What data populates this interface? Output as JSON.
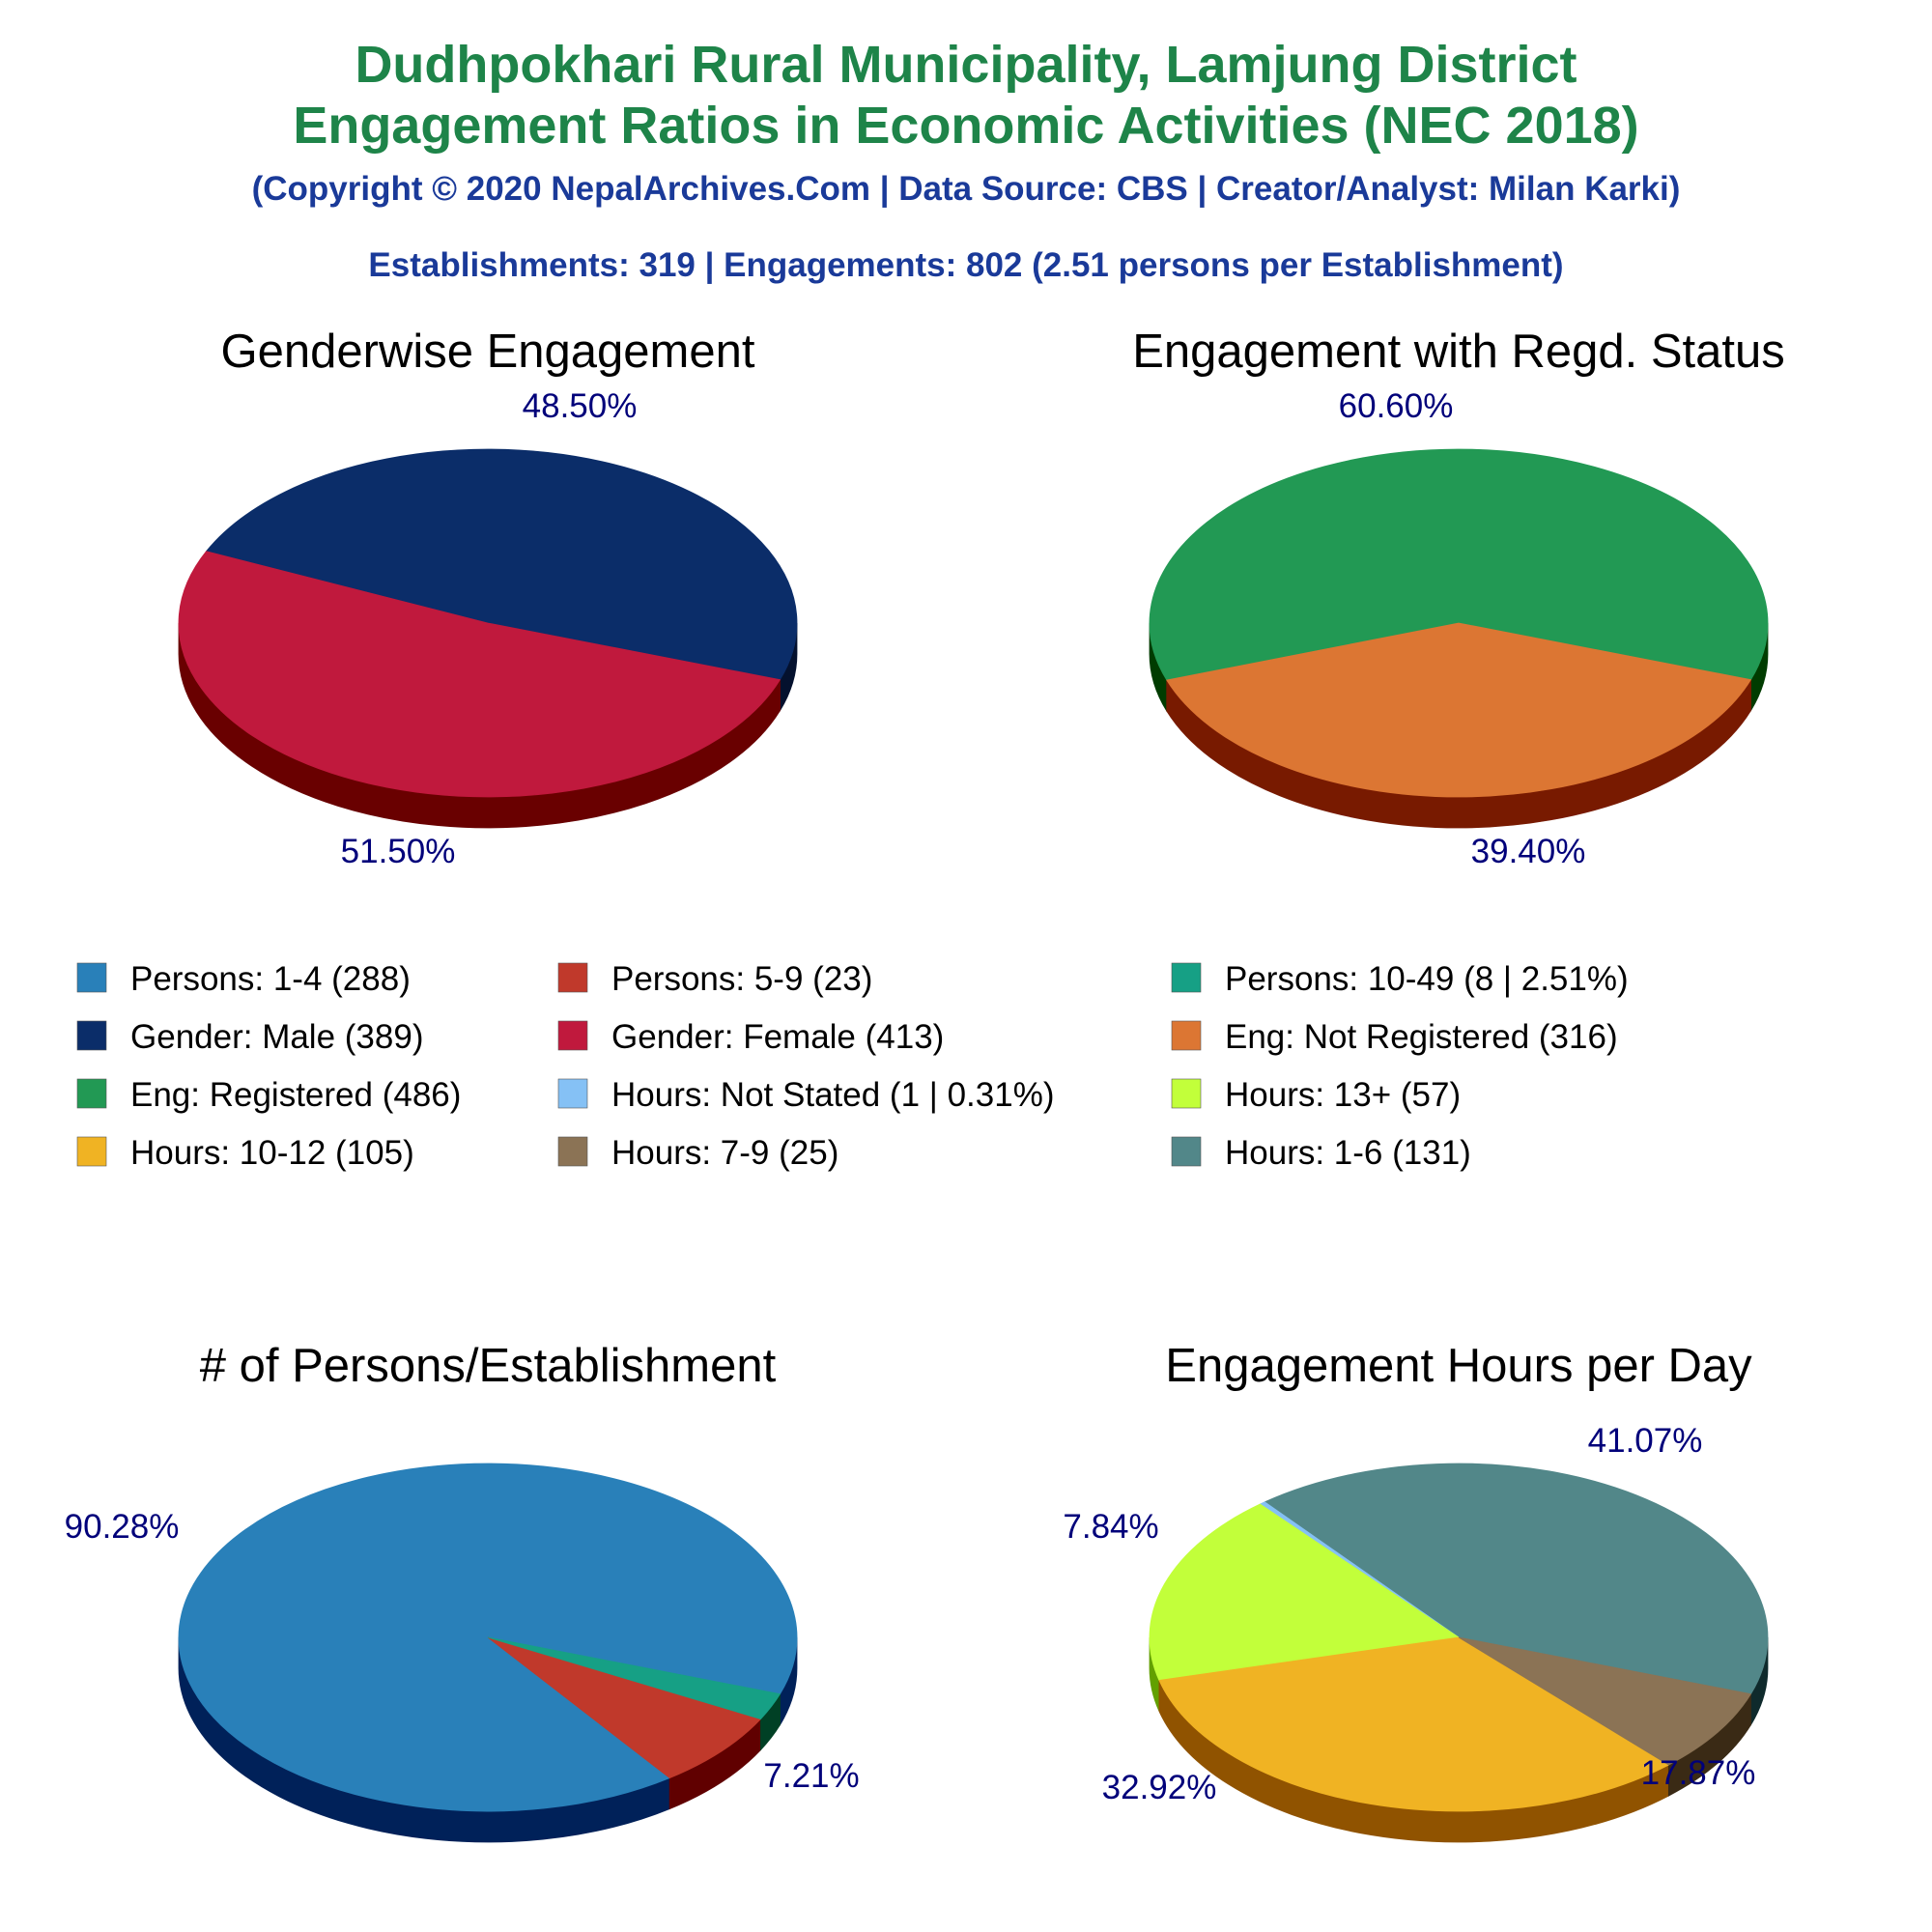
{
  "header": {
    "title_line1": "Dudhpokhari Rural Municipality, Lamjung District",
    "title_line2": "Engagement Ratios in Economic Activities (NEC 2018)",
    "copyright": "(Copyright © 2020 NepalArchives.Com | Data Source: CBS | Creator/Analyst: Milan Karki)",
    "summary": "Establishments: 319 | Engagements: 802 (2.51 persons per Establishment)"
  },
  "colors": {
    "title": "#1e8449",
    "subtitle": "#1a3a99",
    "percent_label": "#00007a",
    "chart_title": "#000000",
    "legend_text": "#000000"
  },
  "legend": [
    {
      "label": "Persons: 1-4 (288)",
      "color": "#2980b9"
    },
    {
      "label": "Persons: 5-9 (23)",
      "color": "#c0392b"
    },
    {
      "label": "Persons: 10-49 (8 | 2.51%)",
      "color": "#16a085"
    },
    {
      "label": "Gender: Male (389)",
      "color": "#0b2d69"
    },
    {
      "label": "Gender: Female (413)",
      "color": "#c0193d"
    },
    {
      "label": "Eng: Not Registered (316)",
      "color": "#dc7633"
    },
    {
      "label": "Eng: Registered (486)",
      "color": "#229954"
    },
    {
      "label": "Hours: Not Stated (1 | 0.31%)",
      "color": "#85c1f5"
    },
    {
      "label": "Hours: 13+ (57)",
      "color": "#c2ff3a"
    },
    {
      "label": "Hours: 10-12 (105)",
      "color": "#f0b323"
    },
    {
      "label": "Hours: 7-9 (25)",
      "color": "#8b7355"
    },
    {
      "label": "Hours: 1-6 (131)",
      "color": "#528789"
    }
  ],
  "chart_data": [
    {
      "type": "pie",
      "title": "Genderwise Engagement",
      "slices": [
        {
          "name": "Gender: Male",
          "value": 389,
          "percent_label": "48.50%",
          "color": "#0b2d69",
          "side_color": "#04112e"
        },
        {
          "name": "Gender: Female",
          "value": 413,
          "percent_label": "51.50%",
          "color": "#c0193d",
          "side_color": "#690000"
        }
      ]
    },
    {
      "type": "pie",
      "title": "Engagement with Regd. Status",
      "slices": [
        {
          "name": "Eng: Registered",
          "value": 486,
          "percent_label": "60.60%",
          "color": "#229954",
          "side_color": "#003c00"
        },
        {
          "name": "Eng: Not Registered",
          "value": 316,
          "percent_label": "39.40%",
          "color": "#dc7633",
          "side_color": "#781a00"
        }
      ]
    },
    {
      "type": "pie",
      "title": "# of Persons/Establishment",
      "slices": [
        {
          "name": "Persons: 1-4",
          "value": 288,
          "percent_label": "90.28%",
          "color": "#2980b9",
          "side_color": "#002159"
        },
        {
          "name": "Persons: 5-9",
          "value": 23,
          "percent_label": "7.21%",
          "color": "#c0392b",
          "side_color": "#600000"
        },
        {
          "name": "Persons: 10-49",
          "value": 8,
          "percent_label": "",
          "color": "#16a085",
          "side_color": "#004025"
        }
      ]
    },
    {
      "type": "pie",
      "title": "Engagement Hours per Day",
      "slices": [
        {
          "name": "Hours: 1-6",
          "value": 131,
          "percent_label": "41.07%",
          "color": "#528789",
          "side_color": "#0f2a2c"
        },
        {
          "name": "Hours: Not Stated",
          "value": 1,
          "percent_label": "",
          "color": "#85c1f5",
          "side_color": "#25619a"
        },
        {
          "name": "Hours: 13+",
          "value": 57,
          "percent_label": "17.87%",
          "color": "#c2ff3a",
          "side_color": "#62a000"
        },
        {
          "name": "Hours: 10-12",
          "value": 105,
          "percent_label": "32.92%",
          "color": "#f0b323",
          "side_color": "#905300"
        },
        {
          "name": "Hours: 7-9",
          "value": 25,
          "percent_label": "7.84%",
          "color": "#8b7355",
          "side_color": "#3a2a15"
        }
      ]
    }
  ]
}
